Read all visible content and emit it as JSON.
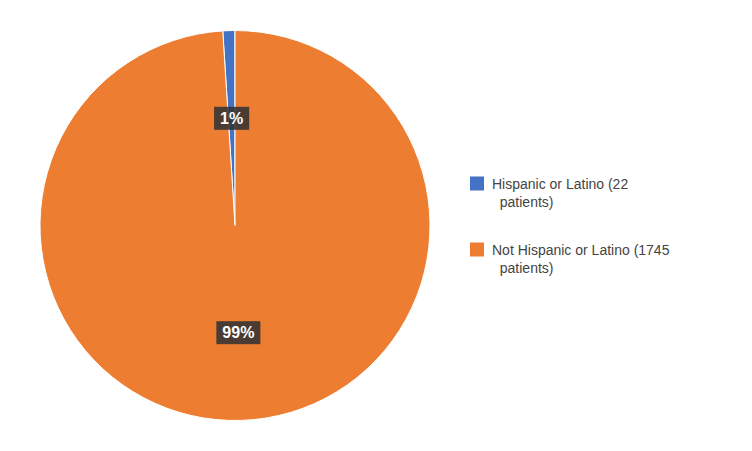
{
  "chart_data": {
    "type": "pie",
    "categories": [
      "Hispanic or Latino (22\n  patients)",
      "Not Hispanic or Latino (1745\n  patients)"
    ],
    "values": [
      1,
      99
    ],
    "value_labels": [
      "1%",
      "99%"
    ],
    "colors": [
      "#4472C4",
      "#ED7D31"
    ],
    "data_labels": true,
    "legend": "right"
  }
}
